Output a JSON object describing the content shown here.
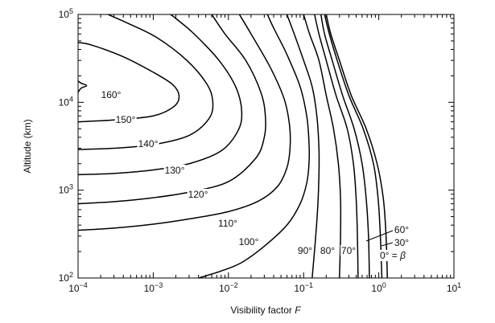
{
  "chart_data": {
    "type": "line",
    "title": "",
    "xlabel": "Visibility factor F",
    "ylabel": "Altitude (km)",
    "x_scale": "log",
    "y_scale": "log",
    "xlim": [
      0.0001,
      10
    ],
    "ylim": [
      100,
      100000
    ],
    "x_ticks": [
      {
        "value": 0.0001,
        "base": "10",
        "exp": "−4"
      },
      {
        "value": 0.001,
        "base": "10",
        "exp": "−3"
      },
      {
        "value": 0.01,
        "base": "10",
        "exp": "−2"
      },
      {
        "value": 0.1,
        "base": "10",
        "exp": "−1"
      },
      {
        "value": 1,
        "base": "10",
        "exp": "0"
      },
      {
        "value": 10,
        "base": "10",
        "exp": "1"
      }
    ],
    "y_ticks": [
      {
        "value": 100,
        "base": "10",
        "exp": "2"
      },
      {
        "value": 1000,
        "base": "10",
        "exp": "3"
      },
      {
        "value": 10000,
        "base": "10",
        "exp": "4"
      },
      {
        "value": 100000,
        "base": "10",
        "exp": "5"
      }
    ],
    "grid": false,
    "legend": "none",
    "series": [
      {
        "label": "160°",
        "points": [
          [
            0.0001,
            13000
          ],
          [
            0.00011,
            14500
          ],
          [
            0.00013,
            15500
          ],
          [
            0.00011,
            16500
          ],
          [
            0.0001,
            17500
          ]
        ]
      },
      {
        "label": "150°",
        "points": [
          [
            0.0001,
            6000
          ],
          [
            0.0003,
            6300
          ],
          [
            0.001,
            7000
          ],
          [
            0.0019,
            9000
          ],
          [
            0.0022,
            12000
          ],
          [
            0.0018,
            16000
          ],
          [
            0.001,
            22000
          ],
          [
            0.0004,
            33000
          ],
          [
            0.00015,
            45000
          ],
          [
            0.0001,
            48000
          ]
        ]
      },
      {
        "label": "140°",
        "points": [
          [
            0.0001,
            2900
          ],
          [
            0.0003,
            3000
          ],
          [
            0.001,
            3300
          ],
          [
            0.003,
            4200
          ],
          [
            0.0055,
            6500
          ],
          [
            0.0062,
            10000
          ],
          [
            0.0052,
            16000
          ],
          [
            0.0028,
            30000
          ],
          [
            0.0011,
            55000
          ],
          [
            0.00045,
            80000
          ],
          [
            0.00025,
            100000
          ]
        ]
      },
      {
        "label": "130°",
        "points": [
          [
            0.0001,
            1500
          ],
          [
            0.0003,
            1550
          ],
          [
            0.001,
            1700
          ],
          [
            0.003,
            2000
          ],
          [
            0.008,
            2800
          ],
          [
            0.0135,
            4800
          ],
          [
            0.015,
            8000
          ],
          [
            0.0125,
            15000
          ],
          [
            0.0075,
            30000
          ],
          [
            0.0035,
            60000
          ],
          [
            0.002,
            90000
          ],
          [
            0.0017,
            100000
          ]
        ]
      },
      {
        "label": "120°",
        "points": [
          [
            0.0001,
            700
          ],
          [
            0.0003,
            740
          ],
          [
            0.001,
            820
          ],
          [
            0.003,
            950
          ],
          [
            0.01,
            1250
          ],
          [
            0.023,
            2300
          ],
          [
            0.03,
            4000
          ],
          [
            0.031,
            7000
          ],
          [
            0.027,
            13000
          ],
          [
            0.017,
            30000
          ],
          [
            0.009,
            60000
          ],
          [
            0.006,
            100000
          ]
        ]
      },
      {
        "label": "110°",
        "points": [
          [
            0.0001,
            350
          ],
          [
            0.0003,
            370
          ],
          [
            0.001,
            410
          ],
          [
            0.003,
            470
          ],
          [
            0.01,
            570
          ],
          [
            0.025,
            750
          ],
          [
            0.045,
            1100
          ],
          [
            0.06,
            1800
          ],
          [
            0.066,
            3000
          ],
          [
            0.065,
            5500
          ],
          [
            0.055,
            11000
          ],
          [
            0.036,
            25000
          ],
          [
            0.02,
            60000
          ],
          [
            0.014,
            100000
          ]
        ]
      },
      {
        "label": "100°",
        "points": [
          [
            0.004,
            100
          ],
          [
            0.008,
            120
          ],
          [
            0.015,
            150
          ],
          [
            0.03,
            230
          ],
          [
            0.06,
            400
          ],
          [
            0.09,
            700
          ],
          [
            0.11,
            1200
          ],
          [
            0.118,
            2000
          ],
          [
            0.118,
            3500
          ],
          [
            0.11,
            7000
          ],
          [
            0.09,
            15000
          ],
          [
            0.06,
            35000
          ],
          [
            0.04,
            70000
          ],
          [
            0.033,
            100000
          ]
        ]
      },
      {
        "label": "90°",
        "points": [
          [
            0.13,
            100
          ],
          [
            0.145,
            300
          ],
          [
            0.155,
            700
          ],
          [
            0.16,
            1500
          ],
          [
            0.16,
            3000
          ],
          [
            0.15,
            7000
          ],
          [
            0.13,
            15000
          ],
          [
            0.1,
            30000
          ],
          [
            0.075,
            60000
          ],
          [
            0.06,
            100000
          ]
        ]
      },
      {
        "label": "80°",
        "points": [
          [
            0.3,
            100
          ],
          [
            0.31,
            300
          ],
          [
            0.31,
            800
          ],
          [
            0.29,
            2000
          ],
          [
            0.25,
            5000
          ],
          [
            0.2,
            12000
          ],
          [
            0.16,
            30000
          ],
          [
            0.12,
            60000
          ],
          [
            0.1,
            100000
          ]
        ]
      },
      {
        "label": "70°",
        "points": [
          [
            0.53,
            100
          ],
          [
            0.52,
            300
          ],
          [
            0.5,
            800
          ],
          [
            0.46,
            2000
          ],
          [
            0.38,
            5000
          ],
          [
            0.27,
            12000
          ],
          [
            0.2,
            30000
          ],
          [
            0.16,
            60000
          ],
          [
            0.14,
            100000
          ]
        ]
      },
      {
        "label": "60°",
        "points": [
          [
            0.75,
            100
          ],
          [
            0.73,
            300
          ],
          [
            0.68,
            800
          ],
          [
            0.6,
            2000
          ],
          [
            0.47,
            5000
          ],
          [
            0.33,
            12000
          ],
          [
            0.24,
            30000
          ],
          [
            0.19,
            60000
          ],
          [
            0.17,
            100000
          ]
        ]
      },
      {
        "label": "30°",
        "points": [
          [
            1.1,
            100
          ],
          [
            1.05,
            300
          ],
          [
            0.98,
            800
          ],
          [
            0.85,
            2000
          ],
          [
            0.62,
            5000
          ],
          [
            0.4,
            12000
          ],
          [
            0.28,
            30000
          ],
          [
            0.22,
            60000
          ],
          [
            0.19,
            100000
          ]
        ]
      },
      {
        "label": "0° = β",
        "points": [
          [
            1.3,
            100
          ],
          [
            1.25,
            300
          ],
          [
            1.15,
            800
          ],
          [
            0.95,
            2000
          ],
          [
            0.68,
            5000
          ],
          [
            0.43,
            12000
          ],
          [
            0.3,
            30000
          ],
          [
            0.23,
            60000
          ],
          [
            0.2,
            100000
          ]
        ]
      }
    ]
  }
}
